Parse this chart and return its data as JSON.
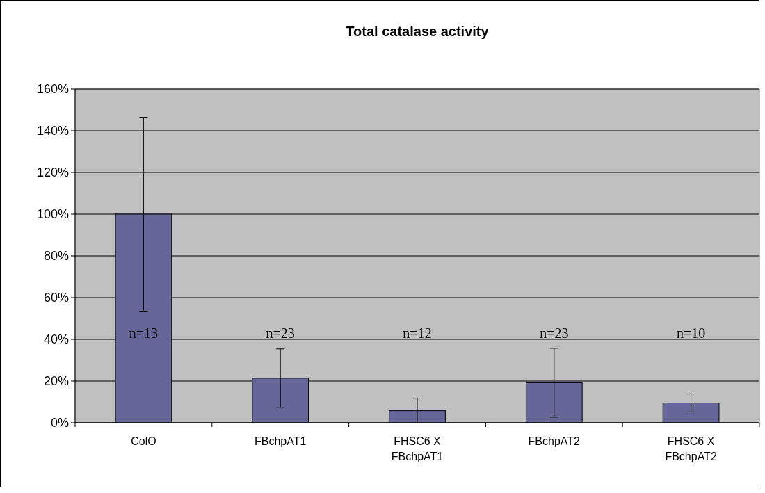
{
  "chart_data": {
    "type": "bar",
    "title": "Total catalase activity",
    "categories": [
      "ColO",
      "FBchpAT1",
      "FHSC6 X FBchpAT1",
      "FBchpAT2",
      "FHSC6 X FBchpAT2"
    ],
    "values": [
      100,
      21.4,
      5.8,
      19.2,
      9.5
    ],
    "errors": [
      46.5,
      14,
      6,
      16.5,
      4.3
    ],
    "color": "#666699",
    "ylim": [
      0,
      160
    ],
    "yticks": [
      {
        "value": 0,
        "label": "0%"
      },
      {
        "value": 20,
        "label": "20%"
      },
      {
        "value": 40,
        "label": "40%"
      },
      {
        "value": 60,
        "label": "60%"
      },
      {
        "value": 80,
        "label": "80%"
      },
      {
        "value": 100,
        "label": "100%"
      },
      {
        "value": 120,
        "label": "120%"
      },
      {
        "value": 140,
        "label": "140%"
      },
      {
        "value": 160,
        "label": "160%"
      }
    ],
    "grid": "y",
    "annotations": [
      "n=13",
      "n=23",
      "n=12",
      "n=23",
      "n=10"
    ]
  }
}
